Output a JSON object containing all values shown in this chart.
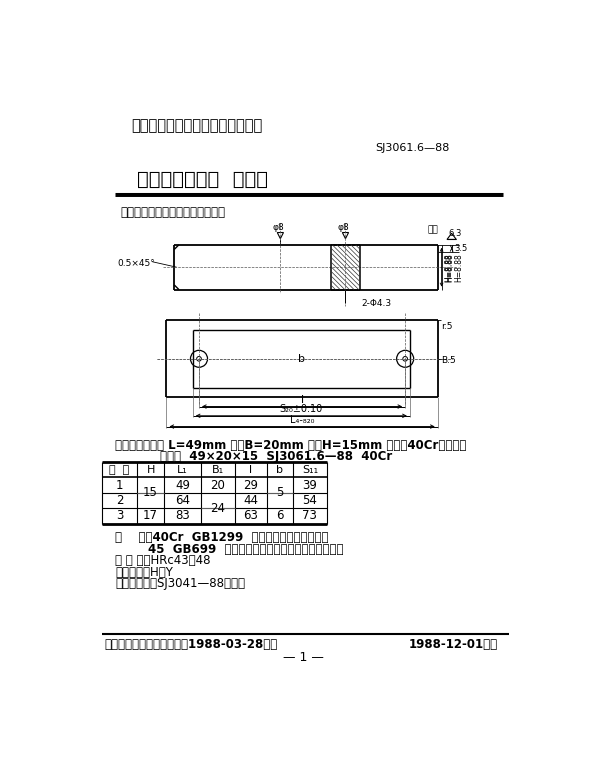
{
  "bg_color": "#ffffff",
  "header_title": "中华人民共和国电子工业部部标准",
  "std_number": "SJ3061.6—88",
  "main_title": "冲裁模通用模架  下垫板",
  "intro_text": "本标准规定了该下垫板的详细要求",
  "label_example_line1": "标记示例：长度 L=49mm 宽度B=20mm 厚度H=15mm 材料为40Cr的下垫板",
  "label_example_line2": "下垫板  49×20×15  SJ3061.6—88  40Cr",
  "table_headers": [
    "序  号",
    "H",
    "L₁",
    "B₁",
    "l",
    "b",
    "S₁₁"
  ],
  "material_lines": [
    "材    料：40Cr  GB1299  《合金工具钢技术条件》",
    "        45  GB699  《优质碳素结构钢号和一般技术条件》",
    "热 处 理：HRc43～48",
    "表面处理：H，Y",
    "技术条件：按SJ3041—88的规定"
  ],
  "footer_left": "中华人民共和国电子工业部1988-03-28批准",
  "footer_right": "1988-12-01实施",
  "page_number": "— 1 —"
}
